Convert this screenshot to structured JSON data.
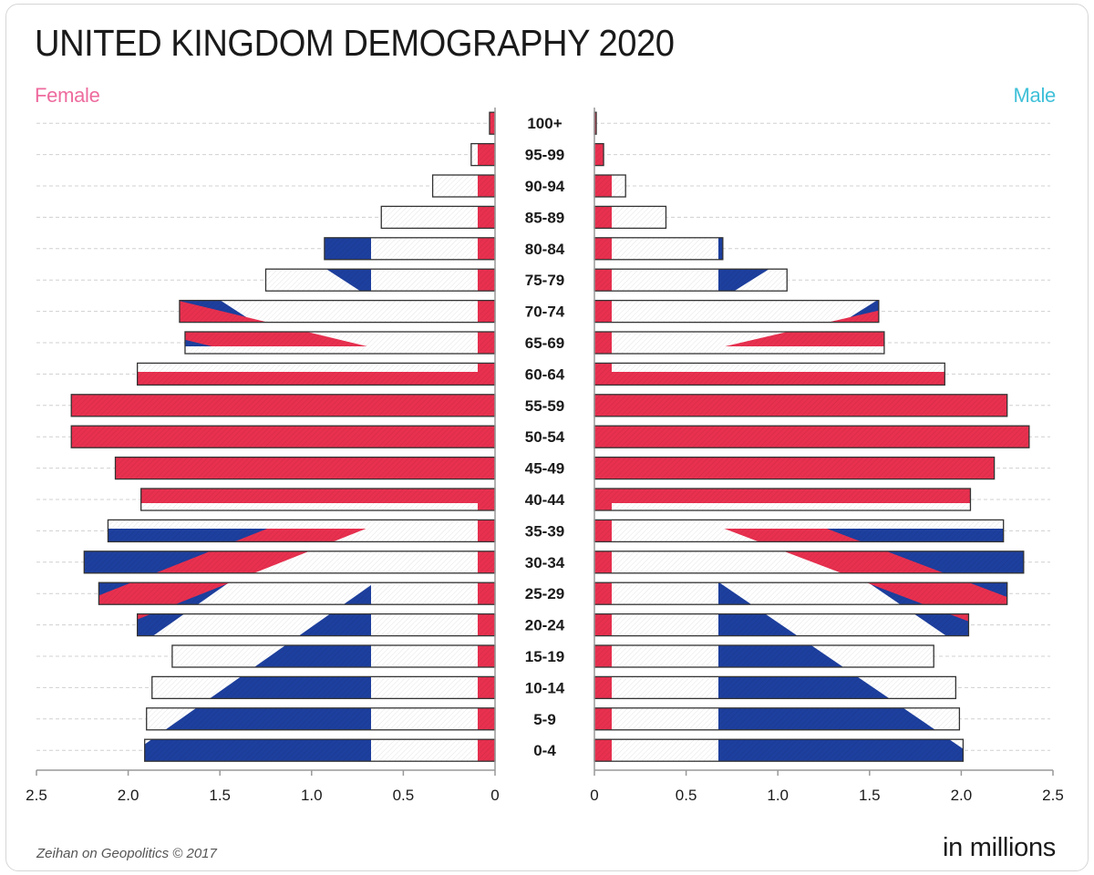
{
  "header": {
    "title": "UNITED KINGDOM DEMOGRAPHY 2020",
    "female_label": "Female",
    "male_label": "Male"
  },
  "footer": {
    "credit": "Zeihan on Geopolitics © 2017",
    "units": "in millions"
  },
  "colors": {
    "red": "#e8304f",
    "blue": "#1d3f9e",
    "white": "#ffffff",
    "female_label": "#ee6b9e",
    "male_label": "#3fc0d8"
  },
  "chart_data": {
    "type": "bar",
    "orientation": "horizontal",
    "subtype": "population-pyramid",
    "categories": [
      "100+",
      "95-99",
      "90-94",
      "85-89",
      "80-84",
      "75-79",
      "70-74",
      "65-69",
      "60-64",
      "55-59",
      "50-54",
      "45-49",
      "40-44",
      "35-39",
      "30-34",
      "25-29",
      "20-24",
      "15-19",
      "10-14",
      "5-9",
      "0-4"
    ],
    "series": [
      {
        "name": "Female",
        "values": [
          0.03,
          0.13,
          0.34,
          0.62,
          0.93,
          1.25,
          1.72,
          1.69,
          1.95,
          2.31,
          2.31,
          2.07,
          1.93,
          2.11,
          2.24,
          2.16,
          1.95,
          1.76,
          1.87,
          1.9,
          1.91
        ]
      },
      {
        "name": "Male",
        "values": [
          0.01,
          0.05,
          0.17,
          0.39,
          0.7,
          1.05,
          1.55,
          1.58,
          1.91,
          2.25,
          2.37,
          2.18,
          2.05,
          2.23,
          2.34,
          2.25,
          2.04,
          1.85,
          1.97,
          1.99,
          2.01
        ]
      }
    ],
    "axes": {
      "female": {
        "range": [
          2.5,
          0
        ],
        "ticks": [
          "2.5",
          "2.0",
          "1.5",
          "1.0",
          "0.5",
          "0"
        ]
      },
      "male": {
        "range": [
          0,
          2.5
        ],
        "ticks": [
          "0",
          "0.5",
          "1.0",
          "1.5",
          "2.0",
          "2.5"
        ]
      }
    },
    "grid": "horizontal-dashed",
    "fill_pattern": "union-jack"
  }
}
